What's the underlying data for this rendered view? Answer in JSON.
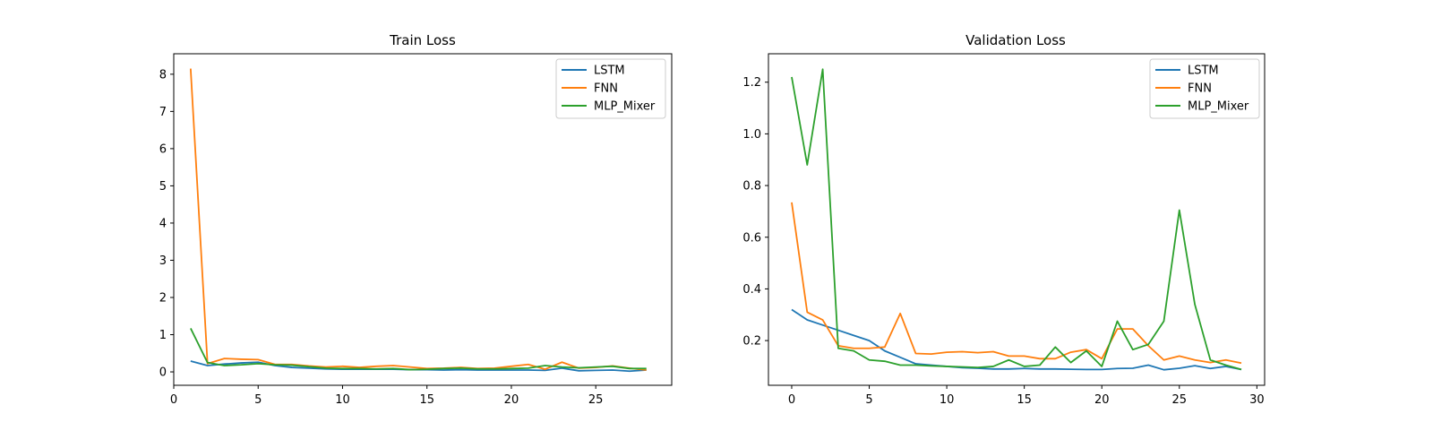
{
  "chart_data": [
    {
      "type": "line",
      "title": "Train Loss",
      "xlabel": "",
      "ylabel": "",
      "xlim": [
        0,
        29.5
      ],
      "ylim": [
        -0.36,
        8.55
      ],
      "xticks": [
        0,
        5,
        10,
        15,
        20,
        25
      ],
      "yticks": [
        0,
        1,
        2,
        3,
        4,
        5,
        6,
        7,
        8
      ],
      "legend_position": "top-right",
      "grid": false,
      "x": [
        1,
        2,
        3,
        4,
        5,
        6,
        7,
        8,
        9,
        10,
        11,
        12,
        13,
        14,
        15,
        16,
        17,
        18,
        19,
        20,
        21,
        22,
        23,
        24,
        25,
        26,
        27,
        28
      ],
      "series": [
        {
          "name": "LSTM",
          "color": "#1f77b4",
          "values": [
            0.29,
            0.17,
            0.21,
            0.24,
            0.26,
            0.17,
            0.12,
            0.1,
            0.08,
            0.07,
            0.07,
            0.07,
            0.07,
            0.06,
            0.06,
            0.05,
            0.06,
            0.05,
            0.05,
            0.05,
            0.05,
            0.04,
            0.1,
            0.03,
            0.04,
            0.05,
            0.02,
            0.05
          ]
        },
        {
          "name": "FNN",
          "color": "#ff7f0e",
          "values": [
            8.15,
            0.22,
            0.36,
            0.34,
            0.33,
            0.2,
            0.2,
            0.16,
            0.13,
            0.15,
            0.12,
            0.15,
            0.17,
            0.13,
            0.09,
            0.1,
            0.12,
            0.09,
            0.1,
            0.15,
            0.2,
            0.07,
            0.26,
            0.1,
            0.12,
            0.16,
            0.1,
            0.05
          ]
        },
        {
          "name": "MLP_Mixer",
          "color": "#2ca02c",
          "values": [
            1.17,
            0.25,
            0.17,
            0.19,
            0.22,
            0.19,
            0.18,
            0.14,
            0.1,
            0.09,
            0.09,
            0.08,
            0.09,
            0.06,
            0.07,
            0.09,
            0.1,
            0.08,
            0.08,
            0.09,
            0.1,
            0.17,
            0.13,
            0.11,
            0.13,
            0.15,
            0.09,
            0.09
          ]
        }
      ]
    },
    {
      "type": "line",
      "title": "Validation Loss",
      "xlabel": "",
      "ylabel": "",
      "xlim": [
        -1.5,
        30.5
      ],
      "ylim": [
        0.027,
        1.31
      ],
      "xticks": [
        0,
        5,
        10,
        15,
        20,
        25,
        30
      ],
      "yticks": [
        0.2,
        0.4,
        0.6,
        0.8,
        1.0,
        1.2
      ],
      "legend_position": "top-right",
      "grid": false,
      "x": [
        0,
        1,
        2,
        3,
        4,
        5,
        6,
        7,
        8,
        9,
        10,
        11,
        12,
        13,
        14,
        15,
        16,
        17,
        18,
        19,
        20,
        21,
        22,
        23,
        24,
        25,
        26,
        27,
        28,
        29
      ],
      "series": [
        {
          "name": "LSTM",
          "color": "#1f77b4",
          "values": [
            0.32,
            0.28,
            0.26,
            0.24,
            0.22,
            0.2,
            0.16,
            0.135,
            0.11,
            0.105,
            0.1,
            0.095,
            0.093,
            0.09,
            0.09,
            0.092,
            0.09,
            0.09,
            0.089,
            0.088,
            0.088,
            0.092,
            0.093,
            0.105,
            0.087,
            0.093,
            0.103,
            0.092,
            0.1,
            0.088
          ]
        },
        {
          "name": "FNN",
          "color": "#ff7f0e",
          "values": [
            0.735,
            0.31,
            0.28,
            0.18,
            0.17,
            0.17,
            0.175,
            0.305,
            0.15,
            0.148,
            0.155,
            0.157,
            0.153,
            0.157,
            0.14,
            0.14,
            0.13,
            0.13,
            0.155,
            0.165,
            0.13,
            0.245,
            0.245,
            0.18,
            0.125,
            0.14,
            0.125,
            0.115,
            0.125,
            0.113
          ]
        },
        {
          "name": "MLP_Mixer",
          "color": "#2ca02c",
          "values": [
            1.22,
            0.88,
            1.25,
            0.17,
            0.16,
            0.125,
            0.12,
            0.105,
            0.105,
            0.102,
            0.1,
            0.098,
            0.096,
            0.1,
            0.125,
            0.1,
            0.105,
            0.175,
            0.115,
            0.16,
            0.1,
            0.275,
            0.165,
            0.185,
            0.275,
            0.705,
            0.34,
            0.125,
            0.105,
            0.088
          ]
        }
      ]
    }
  ]
}
